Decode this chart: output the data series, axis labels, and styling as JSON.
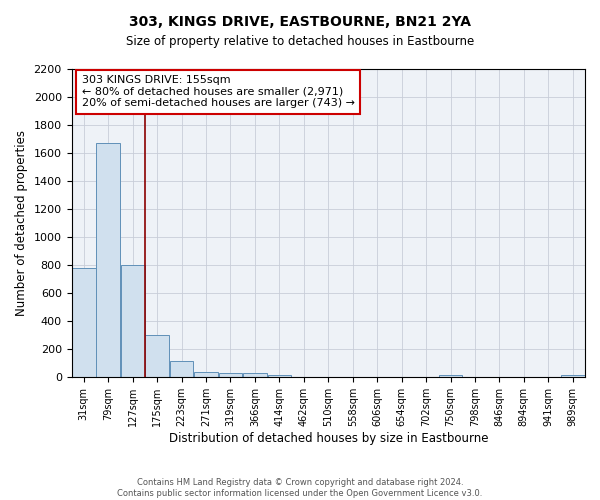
{
  "title": "303, KINGS DRIVE, EASTBOURNE, BN21 2YA",
  "subtitle": "Size of property relative to detached houses in Eastbourne",
  "xlabel": "Distribution of detached houses by size in Eastbourne",
  "ylabel": "Number of detached properties",
  "bar_color": "#d0e0ee",
  "bar_edge_color": "#6090b8",
  "categories": [
    "31sqm",
    "79sqm",
    "127sqm",
    "175sqm",
    "223sqm",
    "271sqm",
    "319sqm",
    "366sqm",
    "414sqm",
    "462sqm",
    "510sqm",
    "558sqm",
    "606sqm",
    "654sqm",
    "702sqm",
    "750sqm",
    "798sqm",
    "846sqm",
    "894sqm",
    "941sqm",
    "989sqm"
  ],
  "values": [
    780,
    1670,
    800,
    300,
    115,
    40,
    30,
    30,
    20,
    0,
    0,
    0,
    0,
    0,
    0,
    20,
    0,
    0,
    0,
    0,
    20
  ],
  "ylim": [
    0,
    2200
  ],
  "yticks": [
    0,
    200,
    400,
    600,
    800,
    1000,
    1200,
    1400,
    1600,
    1800,
    2000,
    2200
  ],
  "vline_position": 2.5,
  "vline_color": "#8b0000",
  "annotation_title": "303 KINGS DRIVE: 155sqm",
  "annotation_line1": "← 80% of detached houses are smaller (2,971)",
  "annotation_line2": "20% of semi-detached houses are larger (743) →",
  "footer1": "Contains HM Land Registry data © Crown copyright and database right 2024.",
  "footer2": "Contains public sector information licensed under the Open Government Licence v3.0.",
  "background_color": "#eef2f7",
  "grid_color": "#c8cdd8"
}
